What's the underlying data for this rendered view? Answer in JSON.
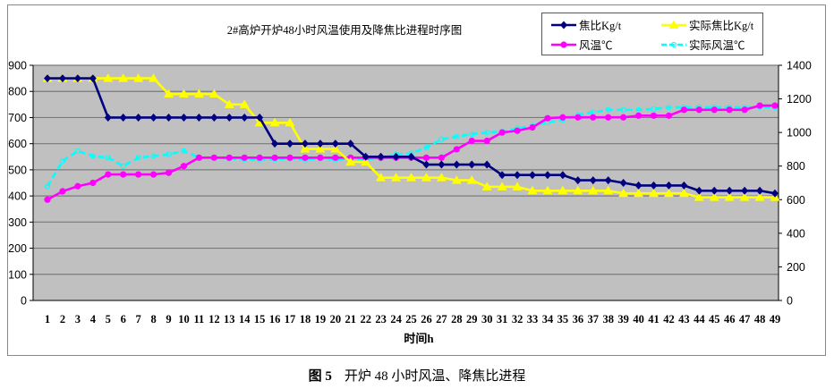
{
  "caption": {
    "figure": "图 5",
    "text": "开炉 48 小时风温、降焦比进程"
  },
  "chart_data": {
    "type": "line",
    "title": "2#高炉开炉48小时风温使用及降焦比进程时序图",
    "xlabel": "时间h",
    "ylabel": "",
    "y2label": "",
    "ylim": [
      0,
      900
    ],
    "y2lim": [
      0,
      1400
    ],
    "yticks": [
      0,
      100,
      200,
      300,
      400,
      500,
      600,
      700,
      800,
      900
    ],
    "y2ticks": [
      0,
      200,
      400,
      600,
      800,
      1000,
      1200,
      1400
    ],
    "grid": true,
    "legend": "top-right",
    "background": "#c0c0c0",
    "x": [
      1,
      2,
      3,
      4,
      5,
      6,
      7,
      8,
      9,
      10,
      11,
      12,
      13,
      14,
      15,
      16,
      17,
      18,
      19,
      20,
      21,
      22,
      23,
      24,
      25,
      26,
      27,
      28,
      29,
      30,
      31,
      32,
      33,
      34,
      35,
      36,
      37,
      38,
      39,
      40,
      41,
      42,
      43,
      44,
      45,
      46,
      47,
      48,
      49
    ],
    "series": [
      {
        "name": "焦比Kg/t",
        "axis": "left",
        "color": "#000080",
        "marker": "diamond",
        "dash": false,
        "values": [
          850,
          850,
          850,
          850,
          700,
          700,
          700,
          700,
          700,
          700,
          700,
          700,
          700,
          700,
          700,
          600,
          600,
          600,
          600,
          600,
          600,
          550,
          550,
          550,
          550,
          520,
          520,
          520,
          520,
          520,
          480,
          480,
          480,
          480,
          480,
          460,
          460,
          460,
          450,
          440,
          440,
          440,
          440,
          420,
          420,
          420,
          420,
          420,
          410
        ]
      },
      {
        "name": "实际焦比Kg/t",
        "axis": "left",
        "color": "#ffff00",
        "marker": "triangle",
        "dash": false,
        "values": [
          850,
          850,
          850,
          850,
          850,
          850,
          850,
          850,
          790,
          790,
          790,
          790,
          750,
          750,
          680,
          680,
          680,
          580,
          580,
          580,
          530,
          530,
          470,
          470,
          470,
          470,
          470,
          460,
          460,
          435,
          435,
          435,
          420,
          420,
          420,
          420,
          420,
          420,
          410,
          410,
          410,
          410,
          410,
          395,
          395,
          395,
          395,
          395,
          395
        ]
      },
      {
        "name": "风温℃",
        "axis": "right",
        "color": "#ff00ff",
        "marker": "circle",
        "dash": false,
        "values": [
          600,
          650,
          680,
          700,
          750,
          750,
          750,
          750,
          760,
          800,
          850,
          850,
          850,
          850,
          850,
          850,
          850,
          850,
          850,
          850,
          850,
          850,
          850,
          850,
          850,
          850,
          850,
          900,
          950,
          950,
          1000,
          1010,
          1030,
          1085,
          1090,
          1090,
          1090,
          1090,
          1090,
          1100,
          1100,
          1100,
          1135,
          1135,
          1135,
          1135,
          1135,
          1160,
          1160
        ]
      },
      {
        "name": "实际风温℃",
        "axis": "right",
        "color": "#00ffff",
        "marker": "open-circle",
        "dash": true,
        "values": [
          680,
          830,
          890,
          860,
          850,
          800,
          850,
          860,
          870,
          890,
          850,
          850,
          845,
          840,
          838,
          840,
          845,
          838,
          845,
          838,
          842,
          842,
          849,
          870,
          875,
          910,
          960,
          975,
          990,
          1000,
          1005,
          1025,
          1040,
          1060,
          1075,
          1105,
          1120,
          1135,
          1135,
          1135,
          1140,
          1150,
          1150,
          1150,
          1150,
          1150,
          1150,
          1150,
          1150
        ]
      }
    ]
  }
}
